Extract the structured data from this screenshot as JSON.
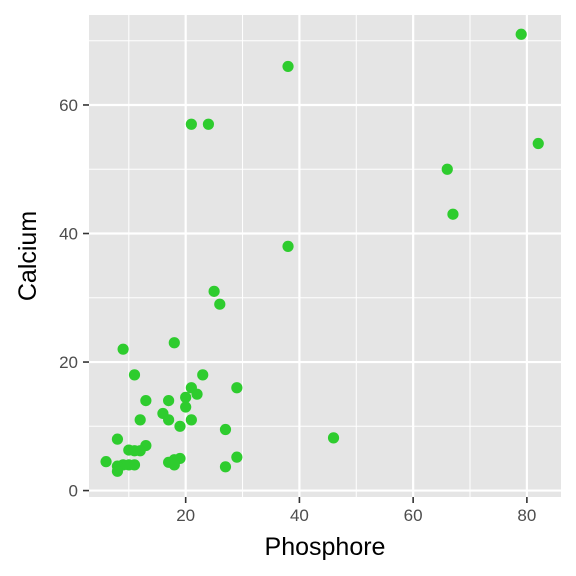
{
  "chart_data": {
    "type": "scatter",
    "title": "",
    "xlabel": "Phosphore",
    "ylabel": "Calcium",
    "xlim": [
      3,
      86
    ],
    "ylim": [
      -1,
      74
    ],
    "x_ticks": [
      20,
      40,
      60,
      80
    ],
    "y_ticks": [
      0,
      20,
      40,
      60
    ],
    "x_minor": [
      10,
      30,
      50,
      70
    ],
    "y_minor": [
      10,
      30,
      50,
      70
    ],
    "grid": true,
    "legend": "none",
    "point_color": "#2ecc2e",
    "panel_color": "#e5e5e5",
    "grid_color": "#ffffff",
    "series": [
      {
        "points": [
          [
            79,
            71
          ],
          [
            38,
            66
          ],
          [
            21,
            57
          ],
          [
            24,
            57
          ],
          [
            82,
            54
          ],
          [
            66,
            50
          ],
          [
            67,
            43
          ],
          [
            38,
            38
          ],
          [
            25,
            31
          ],
          [
            26,
            29
          ],
          [
            18,
            23
          ],
          [
            9,
            22
          ],
          [
            11,
            18
          ],
          [
            23,
            18
          ],
          [
            29,
            16
          ],
          [
            21,
            16
          ],
          [
            16,
            12
          ],
          [
            22,
            15
          ],
          [
            20,
            14.5
          ],
          [
            17,
            14
          ],
          [
            13,
            14
          ],
          [
            20,
            13
          ],
          [
            12,
            11
          ],
          [
            17,
            11
          ],
          [
            21,
            11
          ],
          [
            19,
            10
          ],
          [
            27,
            9.5
          ],
          [
            46,
            8.2
          ],
          [
            8,
            8
          ],
          [
            13,
            7
          ],
          [
            12,
            6.2
          ],
          [
            10,
            6.3
          ],
          [
            11,
            6.2
          ],
          [
            29,
            5.2
          ],
          [
            19,
            5
          ],
          [
            18,
            4.8
          ],
          [
            6,
            4.5
          ],
          [
            17,
            4.4
          ],
          [
            18,
            4
          ],
          [
            10,
            4
          ],
          [
            11,
            4
          ],
          [
            9,
            4
          ],
          [
            8,
            3.8
          ],
          [
            27,
            3.7
          ],
          [
            8,
            3
          ]
        ]
      }
    ]
  }
}
